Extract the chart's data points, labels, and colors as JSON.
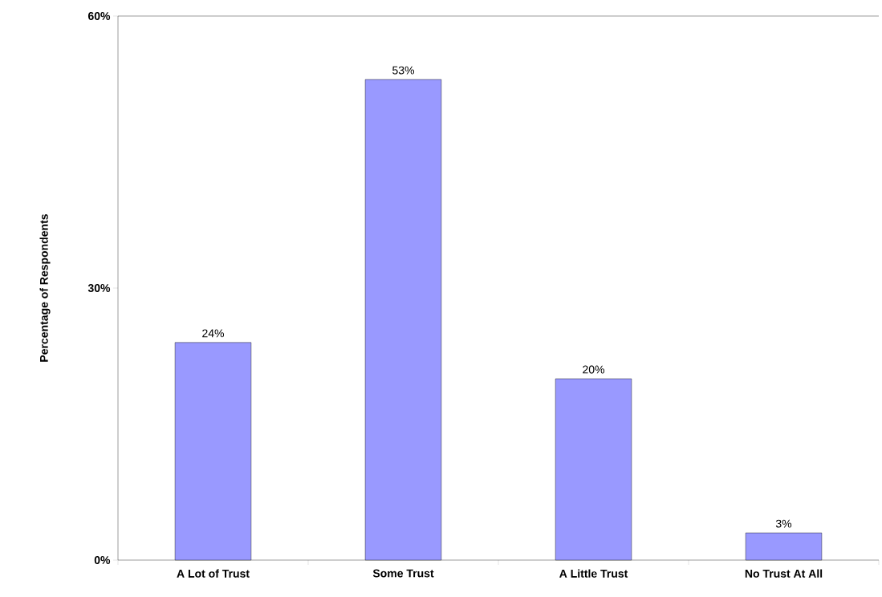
{
  "chart_data": {
    "type": "bar",
    "ylabel": "Percentage of Respondents",
    "categories": [
      "A Lot of Trust",
      "Some Trust",
      "A Little Trust",
      "No Trust At All"
    ],
    "values": [
      24,
      53,
      20,
      3
    ],
    "value_labels": [
      "24%",
      "53%",
      "20%",
      "3%"
    ],
    "color": "#9999ff",
    "ylim": [
      0,
      60
    ],
    "yticks": [
      {
        "value": 0,
        "label": "0%"
      },
      {
        "value": 30,
        "label": "30%"
      },
      {
        "value": 60,
        "label": "60%"
      }
    ]
  }
}
